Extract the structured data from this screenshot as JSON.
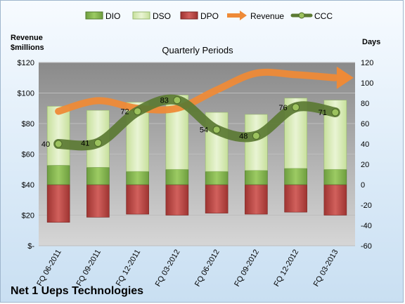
{
  "chart_data": {
    "type": "bar",
    "title": "Quarterly Periods",
    "company": "Net 1 Ueps Technologies",
    "categories": [
      "FQ 06-2011",
      "FQ 09-2011",
      "FQ 12-2011",
      "FQ 03-2012",
      "FQ 06-2012",
      "FQ 09-2012",
      "FQ 12-2012",
      "FQ 03-2013"
    ],
    "left_axis": {
      "title_line1": "Revenue",
      "title_line2": "$millions",
      "min": 0,
      "max": 120,
      "step": 20,
      "tick_labels": [
        "$-",
        "$20",
        "$40",
        "$60",
        "$80",
        "$100",
        "$120"
      ]
    },
    "right_axis": {
      "title": "Days",
      "min": -60,
      "max": 120,
      "step": 20,
      "tick_labels": [
        "-60",
        "-40",
        "-20",
        "0",
        "20",
        "40",
        "60",
        "80",
        "100",
        "120"
      ]
    },
    "series": [
      {
        "name": "DIO",
        "color": "#7fb24c",
        "values": [
          19,
          17,
          13,
          15,
          13,
          14,
          16,
          15
        ]
      },
      {
        "name": "DSO",
        "color": "#d7eab7",
        "values": [
          58,
          56,
          68,
          73,
          58,
          55,
          69,
          68
        ]
      },
      {
        "name": "DPO",
        "color": "#c0504d",
        "values": [
          -37,
          -32,
          -29,
          -30,
          -28,
          -29,
          -27,
          -30
        ]
      },
      {
        "name": "Revenue",
        "color": "#ee8a37",
        "values": [
          88,
          95,
          90,
          90,
          102,
          113,
          112,
          110
        ]
      },
      {
        "name": "CCC",
        "color": "#5b7a33",
        "values": [
          40,
          41,
          72,
          83,
          54,
          48,
          76,
          71
        ]
      }
    ],
    "data_labels": [
      "40",
      "41",
      "72",
      "83",
      "54",
      "48",
      "76",
      "71"
    ],
    "grid": true,
    "legend_position": "top"
  }
}
